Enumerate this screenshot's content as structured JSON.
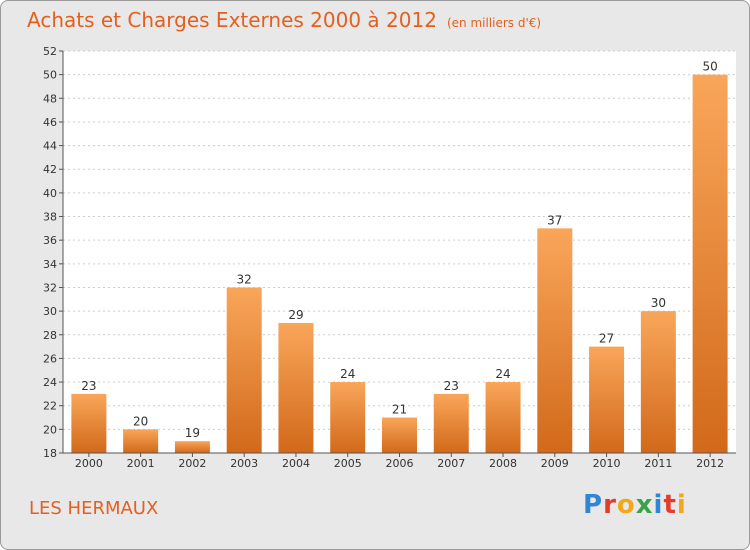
{
  "header": {
    "title": "Achats et Charges Externes 2000 à 2012",
    "subtitle": "(en milliers d'€)"
  },
  "footer": {
    "commune": "LES HERMAUX",
    "brand": "Proxiti",
    "brand_letters": [
      "P",
      "r",
      "o",
      "x",
      "i",
      "t",
      "i"
    ]
  },
  "colors": {
    "title": "#e3601e",
    "bar_light": "#f9a65a",
    "bar_dark": "#d2691a",
    "plot_bg": "#ffffff",
    "frame_bg": "#e8e8e8"
  },
  "chart_data": {
    "type": "bar",
    "title": "Achats et Charges Externes 2000 à 2012",
    "subtitle": "(en milliers d'€)",
    "xlabel": "",
    "ylabel": "",
    "categories": [
      "2000",
      "2001",
      "2002",
      "2003",
      "2004",
      "2005",
      "2006",
      "2007",
      "2008",
      "2009",
      "2010",
      "2011",
      "2012"
    ],
    "values": [
      23,
      20,
      19,
      32,
      29,
      24,
      21,
      23,
      24,
      37,
      27,
      30,
      50
    ],
    "ylim": [
      18,
      52
    ],
    "yticks": [
      18,
      20,
      22,
      24,
      26,
      28,
      30,
      32,
      34,
      36,
      38,
      40,
      42,
      44,
      46,
      48,
      50,
      52
    ],
    "grid": true,
    "legend": "none"
  }
}
